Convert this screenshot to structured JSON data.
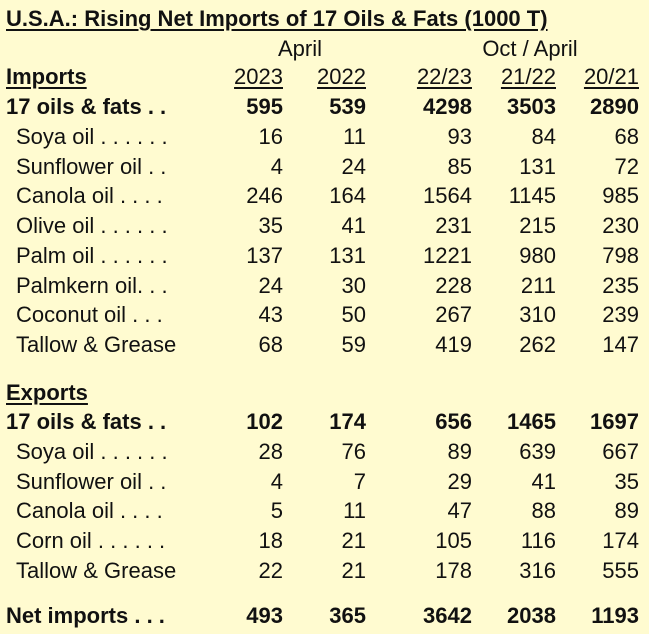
{
  "title": "U.S.A.: Rising Net Imports of 17 Oils & Fats (1000 T)",
  "header": {
    "april": "April",
    "oct_april": "Oct / April",
    "imports_label": "Imports",
    "cols": [
      "2023",
      "2022",
      "22/23",
      "21/22",
      "20/21"
    ]
  },
  "imports": {
    "total": {
      "label": "17 oils & fats . .",
      "values": [
        "595",
        "539",
        "4298",
        "3503",
        "2890"
      ]
    },
    "rows": [
      {
        "label": "Soya oil . . . . . .",
        "values": [
          "16",
          "11",
          "93",
          "84",
          "68"
        ]
      },
      {
        "label": "Sunflower oil . .",
        "values": [
          "4",
          "24",
          "85",
          "131",
          "72"
        ]
      },
      {
        "label": "Canola oil . . . .",
        "values": [
          "246",
          "164",
          "1564",
          "1145",
          "985"
        ]
      },
      {
        "label": "Olive oil . . . . . .",
        "values": [
          "35",
          "41",
          "231",
          "215",
          "230"
        ]
      },
      {
        "label": "Palm oil . . . . . .",
        "values": [
          "137",
          "131",
          "1221",
          "980",
          "798"
        ]
      },
      {
        "label": "Palmkern oil. . .",
        "values": [
          "24",
          "30",
          "228",
          "211",
          "235"
        ]
      },
      {
        "label": "Coconut oil . . .",
        "values": [
          "43",
          "50",
          "267",
          "310",
          "239"
        ]
      },
      {
        "label": "Tallow & Grease",
        "values": [
          "68",
          "59",
          "419",
          "262",
          "147"
        ]
      }
    ]
  },
  "exports": {
    "label": "Exports",
    "total": {
      "label": "17 oils & fats . .",
      "values": [
        "102",
        "174",
        "656",
        "1465",
        "1697"
      ]
    },
    "rows": [
      {
        "label": "Soya oil . . . . . .",
        "values": [
          "28",
          "76",
          "89",
          "639",
          "667"
        ]
      },
      {
        "label": "Sunflower oil . .",
        "values": [
          "4",
          "7",
          "29",
          "41",
          "35"
        ]
      },
      {
        "label": "Canola oil . . . .",
        "values": [
          "5",
          "11",
          "47",
          "88",
          "89"
        ]
      },
      {
        "label": "Corn oil . . . . . .",
        "values": [
          "18",
          "21",
          "105",
          "116",
          "174"
        ]
      },
      {
        "label": "Tallow & Grease",
        "values": [
          "22",
          "21",
          "178",
          "316",
          "555"
        ]
      }
    ]
  },
  "net": {
    "label": "Net imports . . .",
    "values": [
      "493",
      "365",
      "3642",
      "2038",
      "1193"
    ]
  }
}
